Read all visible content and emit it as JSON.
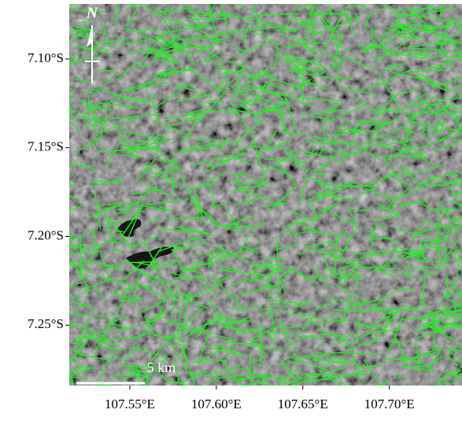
{
  "map": {
    "xlim": [
      107.515,
      107.742
    ],
    "ylim": [
      -7.284,
      -7.069
    ],
    "xticks": [
      {
        "value": 107.55,
        "label": "107.55°E"
      },
      {
        "value": 107.6,
        "label": "107.60°E"
      },
      {
        "value": 107.65,
        "label": "107.65°E"
      },
      {
        "value": 107.7,
        "label": "107.70°E"
      }
    ],
    "yticks": [
      {
        "value": -7.1,
        "label": "7.10°S"
      },
      {
        "value": -7.15,
        "label": "7.15°S"
      },
      {
        "value": -7.2,
        "label": "7.20°S"
      },
      {
        "value": -7.25,
        "label": "7.25°S"
      }
    ],
    "north_label": "N",
    "scale_label": "5 km"
  }
}
